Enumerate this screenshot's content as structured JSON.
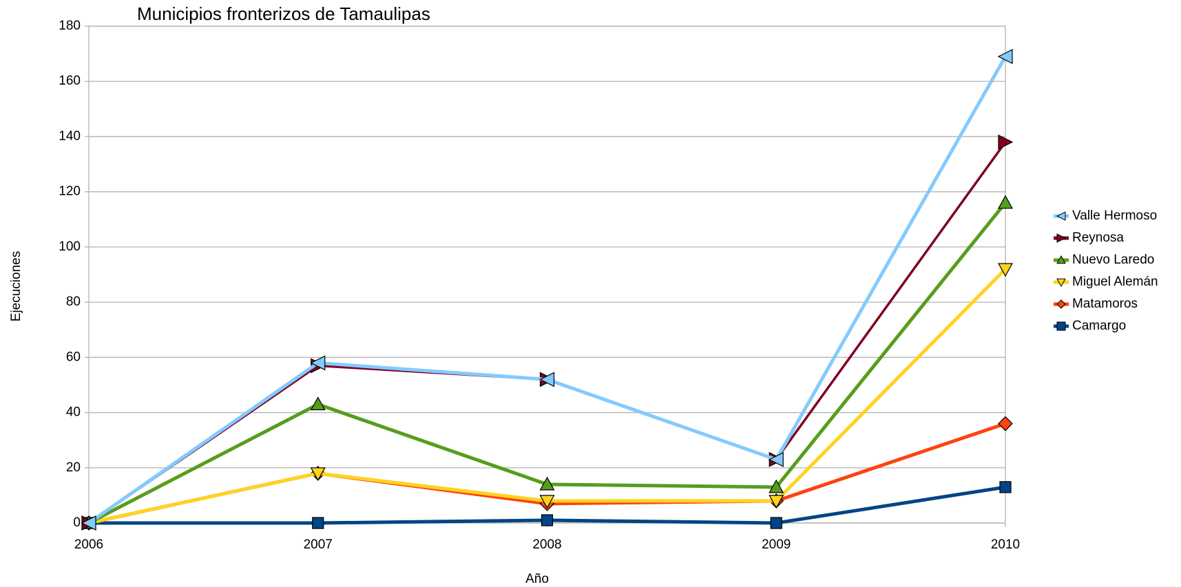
{
  "chart_data": {
    "type": "line",
    "title": "Municipios fronterizos de Tamaulipas",
    "x_label": "Año",
    "y_label": "Ejecuciones",
    "x": [
      2006,
      2007,
      2008,
      2009,
      2010
    ],
    "xlim": [
      2006,
      2010
    ],
    "xticks": [
      2006,
      2007,
      2008,
      2009,
      2010
    ],
    "ylim": [
      0,
      180
    ],
    "yticks": [
      0,
      20,
      40,
      60,
      80,
      100,
      120,
      140,
      160,
      180
    ],
    "grid": true,
    "legend": "right",
    "series": [
      {
        "name": "Valle Hermoso",
        "color": "#83caff",
        "marker": "triangle-left",
        "values": [
          0,
          58,
          52,
          23,
          169
        ]
      },
      {
        "name": "Reynosa",
        "color": "#7e0021",
        "marker": "triangle-right",
        "values": [
          0,
          57,
          52,
          23,
          138
        ]
      },
      {
        "name": "Nuevo Laredo",
        "color": "#579d1c",
        "marker": "triangle-up",
        "values": [
          0,
          43,
          14,
          13,
          116
        ]
      },
      {
        "name": "Miguel Alemán",
        "color": "#ffd320",
        "marker": "triangle-down",
        "values": [
          0,
          18,
          8,
          8,
          92
        ]
      },
      {
        "name": "Matamoros",
        "color": "#ff420e",
        "marker": "diamond",
        "values": [
          0,
          18,
          7,
          8,
          36
        ]
      },
      {
        "name": "Camargo",
        "color": "#004586",
        "marker": "square",
        "values": [
          0,
          0,
          1,
          0,
          13
        ]
      }
    ]
  }
}
